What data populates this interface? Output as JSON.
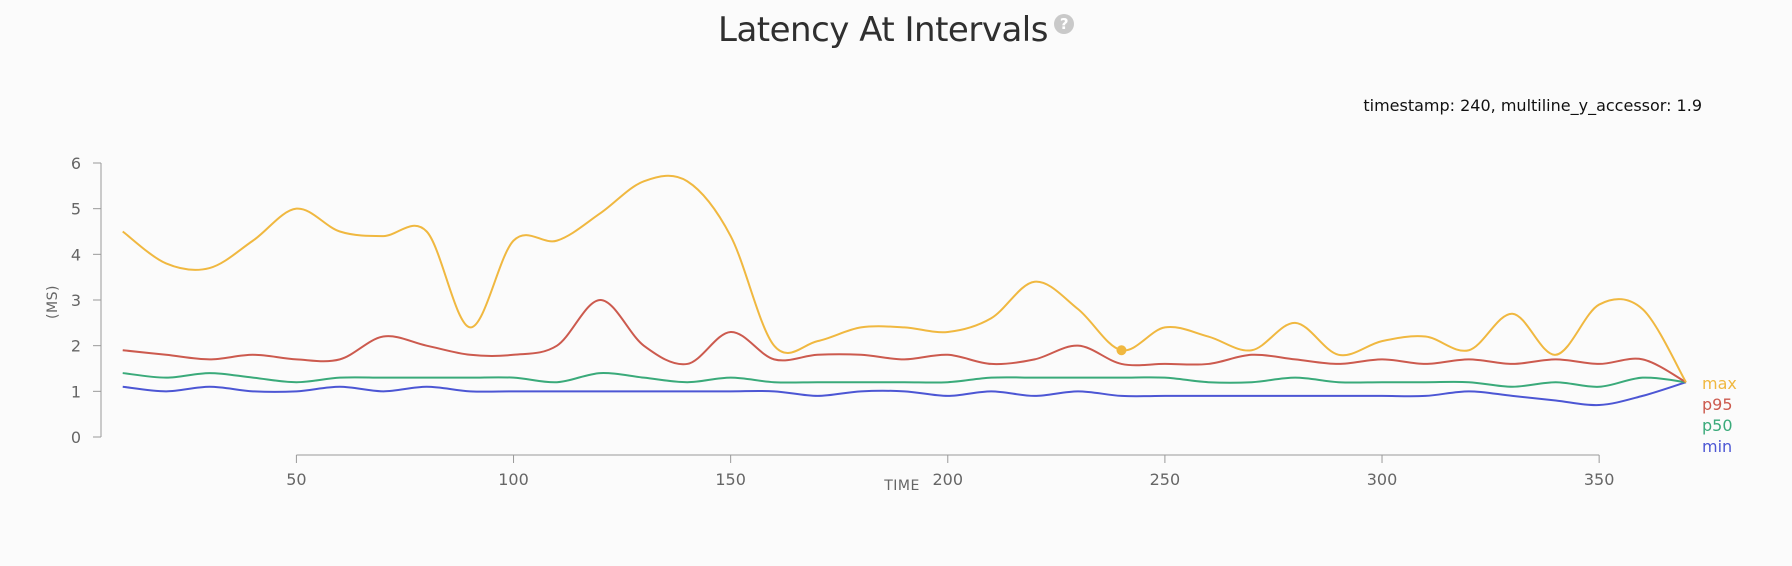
{
  "title": "Latency At Intervals",
  "help_icon": "question-circle-icon",
  "help_glyph": "?",
  "readout": "timestamp: 240, multiline_y_accessor: 1.9",
  "chart_data": {
    "type": "line",
    "title": "Latency At Intervals",
    "xlabel": "TIME",
    "ylabel": "(MS)",
    "xlim": [
      5,
      370
    ],
    "ylim": [
      0,
      6
    ],
    "x_ticks": [
      50,
      100,
      150,
      200,
      250,
      300,
      350
    ],
    "y_ticks": [
      0,
      1,
      2,
      3,
      4,
      5,
      6
    ],
    "grid": false,
    "legend_position": "right",
    "x": [
      10,
      20,
      30,
      40,
      50,
      60,
      70,
      80,
      90,
      100,
      110,
      120,
      130,
      140,
      150,
      160,
      170,
      180,
      190,
      200,
      210,
      220,
      230,
      240,
      250,
      260,
      270,
      280,
      290,
      300,
      310,
      320,
      330,
      340,
      350,
      360,
      370
    ],
    "series": [
      {
        "name": "max",
        "color": "#f0b840",
        "values": [
          4.5,
          3.8,
          3.7,
          4.3,
          5.0,
          4.5,
          4.4,
          4.5,
          2.4,
          4.3,
          4.3,
          4.9,
          5.6,
          5.6,
          4.4,
          2.0,
          2.1,
          2.4,
          2.4,
          2.3,
          2.6,
          3.4,
          2.8,
          1.9,
          2.4,
          2.2,
          1.9,
          2.5,
          1.8,
          2.1,
          2.2,
          1.9,
          2.7,
          1.8,
          2.9,
          2.8,
          1.2
        ]
      },
      {
        "name": "p95",
        "color": "#cc5a4e",
        "values": [
          1.9,
          1.8,
          1.7,
          1.8,
          1.7,
          1.7,
          2.2,
          2.0,
          1.8,
          1.8,
          2.0,
          3.0,
          2.0,
          1.6,
          2.3,
          1.7,
          1.8,
          1.8,
          1.7,
          1.8,
          1.6,
          1.7,
          2.0,
          1.6,
          1.6,
          1.6,
          1.8,
          1.7,
          1.6,
          1.7,
          1.6,
          1.7,
          1.6,
          1.7,
          1.6,
          1.7,
          1.2
        ]
      },
      {
        "name": "p50",
        "color": "#3aaa7a",
        "values": [
          1.4,
          1.3,
          1.4,
          1.3,
          1.2,
          1.3,
          1.3,
          1.3,
          1.3,
          1.3,
          1.2,
          1.4,
          1.3,
          1.2,
          1.3,
          1.2,
          1.2,
          1.2,
          1.2,
          1.2,
          1.3,
          1.3,
          1.3,
          1.3,
          1.3,
          1.2,
          1.2,
          1.3,
          1.2,
          1.2,
          1.2,
          1.2,
          1.1,
          1.2,
          1.1,
          1.3,
          1.2
        ]
      },
      {
        "name": "min",
        "color": "#4c56d4",
        "values": [
          1.1,
          1.0,
          1.1,
          1.0,
          1.0,
          1.1,
          1.0,
          1.1,
          1.0,
          1.0,
          1.0,
          1.0,
          1.0,
          1.0,
          1.0,
          1.0,
          0.9,
          1.0,
          1.0,
          0.9,
          1.0,
          0.9,
          1.0,
          0.9,
          0.9,
          0.9,
          0.9,
          0.9,
          0.9,
          0.9,
          0.9,
          1.0,
          0.9,
          0.8,
          0.7,
          0.9,
          1.2
        ]
      }
    ],
    "highlight": {
      "series": "max",
      "x": 240,
      "y": 1.9
    }
  }
}
